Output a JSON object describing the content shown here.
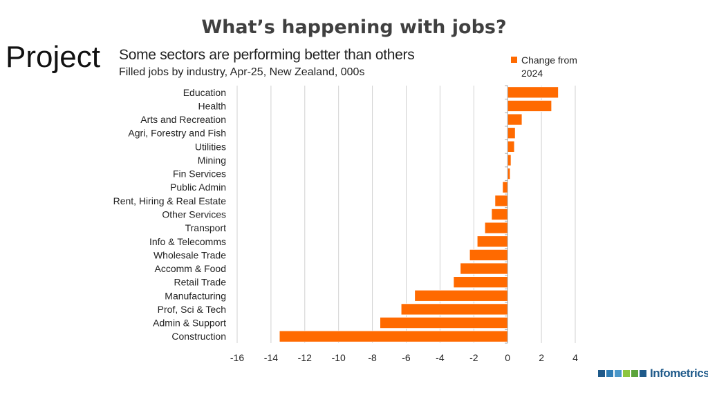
{
  "page": {
    "title": "What’s happening with jobs?",
    "side_label": "Project"
  },
  "chart_data": {
    "type": "bar",
    "orientation": "horizontal",
    "title": "Some sectors are performing better than others",
    "subtitle": "Filled jobs by industry, Apr-25, New Zealand, 000s",
    "xlabel": "",
    "ylabel": "",
    "xlim": [
      -16,
      4
    ],
    "x_ticks": [
      -16,
      -14,
      -12,
      -10,
      -8,
      -6,
      -4,
      -2,
      0,
      2,
      4
    ],
    "grid": "vertical",
    "legend_position": "top-right",
    "bar_color": "#FF6A00",
    "categories": [
      "Education",
      "Health",
      "Arts and Recreation",
      "Agri, Forestry and Fish",
      "Utilities",
      "Mining",
      "Fin Services",
      "Public Admin",
      "Rent, Hiring & Real Estate",
      "Other Services",
      "Transport",
      "Info & Telecomms",
      "Wholesale Trade",
      "Accomm & Food",
      "Retail Trade",
      "Manufacturing",
      "Prof, Sci & Tech",
      "Admin & Support",
      "Construction"
    ],
    "series": [
      {
        "name": "Change from 2024",
        "values": [
          3.0,
          2.6,
          0.85,
          0.45,
          0.4,
          0.2,
          0.15,
          -0.3,
          -0.75,
          -0.95,
          -1.35,
          -1.8,
          -2.25,
          -2.8,
          -3.2,
          -5.5,
          -6.3,
          -7.55,
          -13.5
        ]
      }
    ]
  },
  "logo": {
    "text": "Infometrics",
    "colors": [
      "#1F5A8A",
      "#2E7DB5",
      "#4A97C9",
      "#8DC63F",
      "#5BA33B",
      "#1F5A8A"
    ]
  }
}
